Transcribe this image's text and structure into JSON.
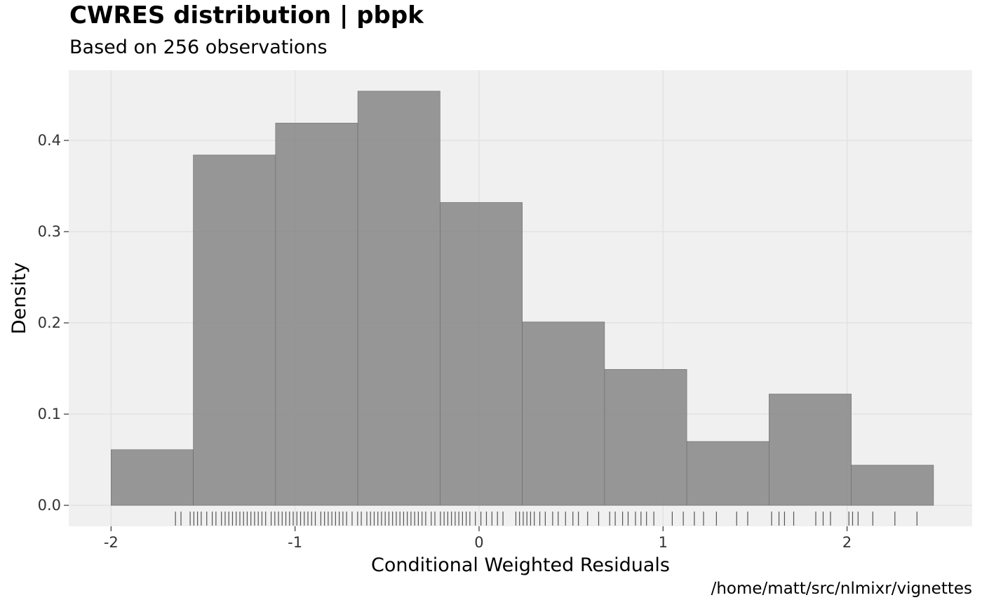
{
  "chart_data": {
    "type": "histogram",
    "title": "CWRES distribution | pbpk",
    "subtitle": "Based on 256 observations",
    "caption": "/home/matt/src/nlmixr/vignettes",
    "xlabel": "Conditional Weighted Residuals",
    "ylabel": "Density",
    "xlim": [
      -2.23,
      2.68
    ],
    "ylim": [
      -0.023,
      0.477
    ],
    "xticks": [
      -2,
      -1,
      0,
      1,
      2
    ],
    "xtick_labels": [
      "-2",
      "-1",
      "0",
      "1",
      "2"
    ],
    "yticks": [
      0,
      0.1,
      0.2,
      0.3,
      0.4
    ],
    "ytick_labels": [
      "0.0",
      "0.1",
      "0.2",
      "0.3",
      "0.4"
    ],
    "grid": true,
    "bins": [
      {
        "x0": -2.0,
        "x1": -1.553,
        "density": 0.061
      },
      {
        "x0": -1.553,
        "x1": -1.106,
        "density": 0.384
      },
      {
        "x0": -1.106,
        "x1": -0.659,
        "density": 0.419
      },
      {
        "x0": -0.659,
        "x1": -0.212,
        "density": 0.454
      },
      {
        "x0": -0.212,
        "x1": 0.235,
        "density": 0.332
      },
      {
        "x0": 0.235,
        "x1": 0.682,
        "density": 0.201
      },
      {
        "x0": 0.682,
        "x1": 1.129,
        "density": 0.149
      },
      {
        "x0": 1.129,
        "x1": 1.576,
        "density": 0.07
      },
      {
        "x0": 1.576,
        "x1": 2.023,
        "density": 0.122
      },
      {
        "x0": 2.023,
        "x1": 2.47,
        "density": 0.044
      }
    ],
    "rug": [
      -1.65,
      -1.62,
      -1.57,
      -1.55,
      -1.53,
      -1.51,
      -1.48,
      -1.45,
      -1.43,
      -1.4,
      -1.38,
      -1.36,
      -1.34,
      -1.32,
      -1.3,
      -1.28,
      -1.26,
      -1.24,
      -1.22,
      -1.2,
      -1.18,
      -1.16,
      -1.13,
      -1.11,
      -1.09,
      -1.07,
      -1.05,
      -1.03,
      -1.01,
      -0.99,
      -0.97,
      -0.95,
      -0.93,
      -0.91,
      -0.89,
      -0.86,
      -0.84,
      -0.82,
      -0.8,
      -0.78,
      -0.76,
      -0.74,
      -0.72,
      -0.69,
      -0.66,
      -0.64,
      -0.61,
      -0.59,
      -0.57,
      -0.55,
      -0.53,
      -0.51,
      -0.49,
      -0.47,
      -0.45,
      -0.43,
      -0.41,
      -0.39,
      -0.37,
      -0.35,
      -0.33,
      -0.31,
      -0.29,
      -0.26,
      -0.24,
      -0.21,
      -0.19,
      -0.17,
      -0.15,
      -0.13,
      -0.11,
      -0.09,
      -0.07,
      -0.05,
      -0.02,
      0.01,
      0.04,
      0.07,
      0.1,
      0.13,
      0.2,
      0.22,
      0.24,
      0.26,
      0.28,
      0.3,
      0.33,
      0.36,
      0.4,
      0.43,
      0.47,
      0.51,
      0.54,
      0.59,
      0.65,
      0.71,
      0.74,
      0.78,
      0.81,
      0.85,
      0.88,
      0.91,
      0.95,
      1.05,
      1.11,
      1.17,
      1.22,
      1.29,
      1.4,
      1.46,
      1.59,
      1.63,
      1.66,
      1.71,
      1.83,
      1.87,
      1.91,
      2.01,
      2.03,
      2.06,
      2.14,
      2.26,
      2.38
    ]
  }
}
